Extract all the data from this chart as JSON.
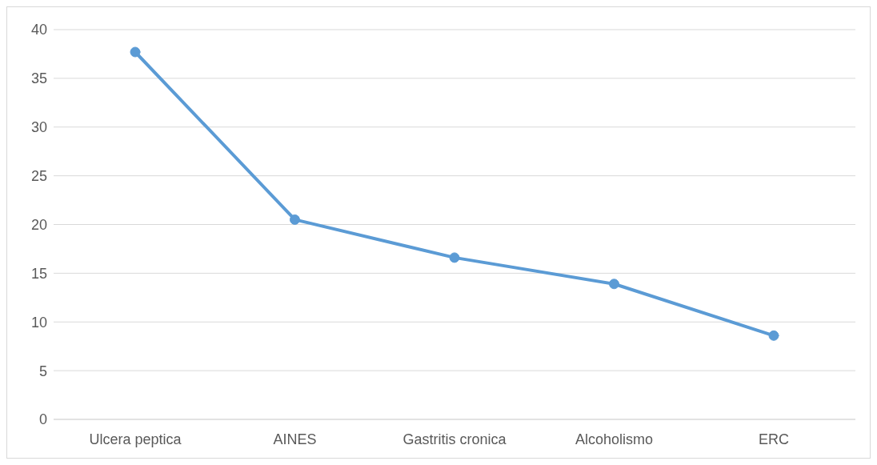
{
  "chart_data": {
    "type": "line",
    "categories": [
      "Ulcera peptica",
      "AINES",
      "Gastritis cronica",
      "Alcoholismo",
      "ERC"
    ],
    "series": [
      {
        "color": "#5b9bd5",
        "values": [
          37.7,
          20.5,
          16.6,
          13.9,
          8.6
        ]
      }
    ],
    "ylim": [
      0,
      40
    ],
    "yticks": [
      0,
      5,
      10,
      15,
      20,
      25,
      30,
      35,
      40
    ],
    "grid": "y",
    "marker": "circle",
    "line_style": "solid"
  }
}
